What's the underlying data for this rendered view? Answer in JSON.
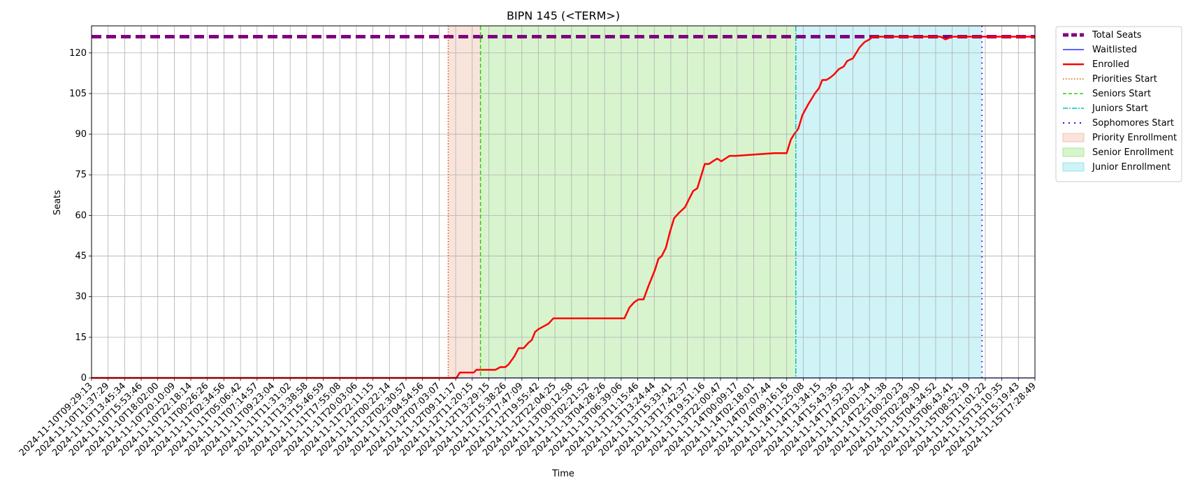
{
  "chart_data": {
    "type": "line",
    "title": "BIPN 145 (<TERM>)",
    "xlabel": "Time",
    "ylabel": "Seats",
    "ylim": [
      0,
      130
    ],
    "yticks": [
      0,
      15,
      30,
      45,
      60,
      75,
      90,
      105,
      120
    ],
    "grid": true,
    "legend_position": "outside top-right",
    "x_tick_labels": [
      "2024-11-10T09:29:13",
      "2024-11-10T11:37:29",
      "2024-11-10T13:45:34",
      "2024-11-10T15:53:46",
      "2024-11-10T18:02:00",
      "2024-11-10T20:10:09",
      "2024-11-10T22:18:14",
      "2024-11-11T00:26:26",
      "2024-11-11T02:34:56",
      "2024-11-11T05:06:42",
      "2024-11-11T07:14:57",
      "2024-11-11T09:23:04",
      "2024-11-11T11:31:02",
      "2024-11-11T13:38:58",
      "2024-11-11T15:46:59",
      "2024-11-11T17:55:08",
      "2024-11-11T20:03:06",
      "2024-11-11T22:11:15",
      "2024-11-12T00:22:14",
      "2024-11-12T02:30:57",
      "2024-11-12T04:54:56",
      "2024-11-12T07:03:07",
      "2024-11-12T09:11:17",
      "2024-11-12T11:20:15",
      "2024-11-12T13:29:15",
      "2024-11-12T15:38:26",
      "2024-11-12T17:47:09",
      "2024-11-12T19:55:42",
      "2024-11-12T22:04:25",
      "2024-11-13T00:12:58",
      "2024-11-13T02:21:52",
      "2024-11-13T04:28:26",
      "2024-11-13T06:39:06",
      "2024-11-13T11:15:46",
      "2024-11-13T13:24:44",
      "2024-11-13T15:33:41",
      "2024-11-13T17:42:37",
      "2024-11-13T19:51:16",
      "2024-11-13T22:00:47",
      "2024-11-14T00:09:17",
      "2024-11-14T02:18:01",
      "2024-11-14T07:07:44",
      "2024-11-14T09:16:16",
      "2024-11-14T11:25:08",
      "2024-11-14T13:34:15",
      "2024-11-14T15:43:36",
      "2024-11-14T17:52:32",
      "2024-11-14T20:01:34",
      "2024-11-14T22:11:38",
      "2024-11-15T00:20:23",
      "2024-11-15T02:29:30",
      "2024-11-15T04:34:52",
      "2024-11-15T06:43:41",
      "2024-11-15T08:52:19",
      "2024-11-15T11:01:22",
      "2024-11-15T13:10:35",
      "2024-11-15T15:19:43",
      "2024-11-15T17:28:49"
    ],
    "x_range": [
      0,
      57
    ],
    "markers": {
      "priorities_start": 21.55,
      "seniors_start": 23.5,
      "juniors_start": 42.55,
      "sophomores_start": 53.8,
      "end": 57
    },
    "series": [
      {
        "name": "Total Seats",
        "style": "dashed-thick",
        "color": "#800080",
        "x": [
          0,
          57
        ],
        "y": [
          126,
          126
        ]
      },
      {
        "name": "Waitlisted",
        "style": "solid-thin",
        "color": "#0000ff",
        "x": [
          0,
          57
        ],
        "y": [
          0,
          0
        ]
      },
      {
        "name": "Enrolled",
        "style": "solid",
        "color": "#ff0000",
        "x": [
          0,
          21.5,
          22.05,
          22.25,
          22.5,
          23.1,
          23.25,
          23.4,
          24.0,
          24.4,
          24.7,
          25.0,
          25.2,
          25.55,
          25.8,
          26.1,
          26.4,
          26.6,
          26.8,
          27.0,
          27.3,
          27.6,
          27.9,
          31.4,
          32.2,
          32.5,
          32.8,
          33.05,
          33.35,
          33.65,
          33.85,
          34.05,
          34.25,
          34.45,
          34.7,
          34.95,
          35.2,
          35.5,
          35.85,
          36.1,
          36.35,
          36.6,
          36.8,
          37.05,
          37.3,
          37.55,
          37.8,
          38.05,
          38.3,
          38.55,
          38.9,
          41.25,
          41.7,
          42.0,
          42.25,
          42.45,
          42.7,
          42.95,
          43.3,
          43.5,
          43.7,
          43.95,
          44.15,
          44.4,
          44.65,
          44.85,
          45.15,
          45.45,
          45.65,
          46.0,
          46.4,
          46.7,
          47.0,
          47.2,
          47.5,
          48.0,
          49.2,
          49.55,
          50.0,
          50.85,
          51.3,
          51.6,
          52.0,
          57.0,
          57.0
        ],
        "y": [
          0,
          0,
          0,
          2,
          2,
          2,
          3,
          3,
          3,
          3,
          4,
          4,
          5,
          8,
          11,
          11,
          13,
          14,
          17,
          18,
          19,
          20,
          22,
          22,
          22,
          26,
          28,
          29,
          29,
          34,
          37,
          40,
          44,
          45,
          48,
          54,
          59,
          61,
          63,
          66,
          69,
          70,
          74,
          79,
          79,
          80,
          81,
          80,
          81,
          82,
          82,
          83,
          83,
          83,
          88,
          90,
          92,
          97,
          101,
          103,
          105,
          107,
          110,
          110,
          111,
          112,
          114,
          115,
          117,
          118,
          122,
          124,
          125,
          126,
          126,
          126,
          126,
          126,
          126,
          126,
          126,
          125,
          126,
          126,
          126
        ]
      }
    ],
    "spans": [
      {
        "name": "Priority Enrollment",
        "from": 21.55,
        "to": 23.5,
        "color": "#e8a789",
        "alpha": 0.3
      },
      {
        "name": "Senior Enrollment",
        "from": 23.5,
        "to": 42.55,
        "color": "#7ddc5e",
        "alpha": 0.3
      },
      {
        "name": "Junior Enrollment",
        "from": 42.55,
        "to": 53.8,
        "color": "#5fd8e0",
        "alpha": 0.3
      }
    ],
    "legend": [
      {
        "label": "Total Seats",
        "kind": "line",
        "color": "#800080",
        "dash": "8,4",
        "width": 5
      },
      {
        "label": "Waitlisted",
        "kind": "line",
        "color": "#0000ff",
        "dash": "",
        "width": 1.2
      },
      {
        "label": "Enrolled",
        "kind": "line",
        "color": "#ff0000",
        "dash": "",
        "width": 2.5
      },
      {
        "label": "Priorities Start",
        "kind": "line",
        "color": "#d35400",
        "dash": "1.5,2.5",
        "width": 1.5
      },
      {
        "label": "Seniors Start",
        "kind": "line",
        "color": "#33cc00",
        "dash": "5,3",
        "width": 1.5
      },
      {
        "label": "Juniors Start",
        "kind": "line",
        "color": "#00bfbf",
        "dash": "7,2,2,2",
        "width": 1.5
      },
      {
        "label": "Sophomores Start",
        "kind": "line",
        "color": "#4000ff",
        "dash": "2,6",
        "width": 2
      },
      {
        "label": "Priority Enrollment",
        "kind": "patch",
        "color": "#e8a789",
        "alpha": 0.3
      },
      {
        "label": "Senior Enrollment",
        "kind": "patch",
        "color": "#7ddc5e",
        "alpha": 0.3
      },
      {
        "label": "Junior Enrollment",
        "kind": "patch",
        "color": "#5fd8e0",
        "alpha": 0.3
      }
    ]
  }
}
